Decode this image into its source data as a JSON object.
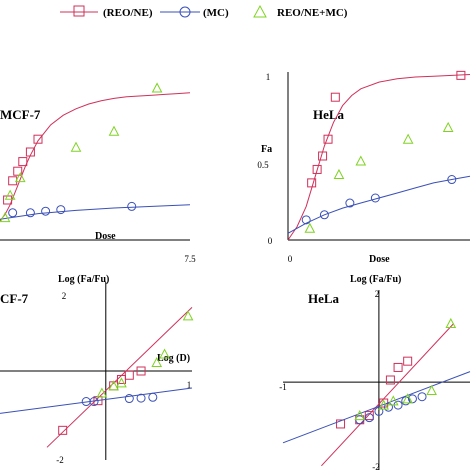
{
  "legend": {
    "items": [
      {
        "label": "(REO/NE)",
        "color": "#d0305a",
        "marker": "square"
      },
      {
        "label": "(MC)",
        "color": "#3a50b8",
        "marker": "circle"
      },
      {
        "label": "REO/NE+MC)",
        "color": "#7ed321",
        "marker": "triangle"
      }
    ]
  },
  "chart_data": [
    {
      "type": "scatter",
      "title": "MCF-7",
      "xlabel": "Dose",
      "ylabel": "",
      "xlim": [
        0,
        7.5
      ],
      "ylim": [
        0,
        1
      ],
      "x_ticks": [
        "7.5"
      ],
      "y_ticks": [],
      "series": [
        {
          "name": "(REO/NE)",
          "x": [
            0.3,
            0.5,
            0.7,
            0.9,
            1.2,
            1.5
          ],
          "y": [
            0.25,
            0.37,
            0.43,
            0.49,
            0.55,
            0.63
          ],
          "curve": {
            "x": [
              0,
              0.2,
              0.4,
              0.6,
              0.8,
              1,
              1.2,
              1.5,
              2,
              2.5,
              3,
              3.5,
              4,
              4.5,
              5,
              5.5,
              6,
              6.5,
              7,
              7.5
            ],
            "y": [
              0.12,
              0.16,
              0.22,
              0.3,
              0.38,
              0.46,
              0.53,
              0.62,
              0.72,
              0.78,
              0.82,
              0.85,
              0.87,
              0.885,
              0.895,
              0.9,
              0.905,
              0.91,
              0.915,
              0.92
            ]
          }
        },
        {
          "name": "(MC)",
          "x": [
            0.5,
            1.2,
            1.8,
            2.4,
            5.2
          ],
          "y": [
            0.17,
            0.17,
            0.18,
            0.19,
            0.21
          ],
          "curve": {
            "x": [
              0,
              1.5,
              3,
              4.5,
              6,
              7.5
            ],
            "y": [
              0.13,
              0.165,
              0.185,
              0.2,
              0.21,
              0.22
            ]
          }
        },
        {
          "name": "REO/NE+MC)",
          "x": [
            0.2,
            0.4,
            0.8,
            3.0,
            4.5,
            6.2
          ],
          "y": [
            0.14,
            0.28,
            0.39,
            0.58,
            0.68,
            0.95
          ]
        }
      ]
    },
    {
      "type": "scatter",
      "title": "HeLa",
      "xlabel": "Dose",
      "ylabel": "Fa",
      "xlim": [
        0,
        10
      ],
      "ylim": [
        0,
        1
      ],
      "x_ticks": [
        "0"
      ],
      "y_ticks": [
        "0",
        "0.5",
        "1"
      ],
      "series": [
        {
          "name": "(REO/NE)",
          "x": [
            1.3,
            1.6,
            1.9,
            2.2,
            2.6,
            9.5
          ],
          "y": [
            0.34,
            0.42,
            0.5,
            0.6,
            0.85,
            0.98
          ],
          "curve": {
            "x": [
              0,
              0.5,
              1,
              1.5,
              2,
              2.5,
              3,
              3.5,
              4,
              5,
              6,
              7,
              8,
              9,
              10
            ],
            "y": [
              0.0,
              0.08,
              0.2,
              0.38,
              0.56,
              0.7,
              0.8,
              0.86,
              0.9,
              0.94,
              0.96,
              0.97,
              0.975,
              0.98,
              0.985
            ]
          }
        },
        {
          "name": "(MC)",
          "x": [
            1.0,
            2.0,
            3.4,
            4.8,
            9.0
          ],
          "y": [
            0.12,
            0.15,
            0.22,
            0.25,
            0.36
          ],
          "curve": {
            "x": [
              0,
              1,
              2,
              3,
              4,
              5,
              6,
              7,
              8,
              9,
              10
            ],
            "y": [
              0.04,
              0.1,
              0.15,
              0.19,
              0.22,
              0.25,
              0.28,
              0.31,
              0.34,
              0.36,
              0.38
            ]
          }
        },
        {
          "name": "REO/NE+MC)",
          "x": [
            1.2,
            2.8,
            4.0,
            6.6,
            8.8
          ],
          "y": [
            0.07,
            0.39,
            0.47,
            0.6,
            0.67
          ]
        }
      ]
    },
    {
      "type": "scatter",
      "title": "CF-7",
      "xlabel": "Log (D)",
      "ylabel": "Log (Fa/Fu)",
      "xlim": [
        -1.35,
        1.1
      ],
      "ylim": [
        -2.1,
        2.1
      ],
      "x_ticks": [
        "1"
      ],
      "y_ticks": [
        "2",
        "-2"
      ],
      "series": [
        {
          "name": "(REO/NE)",
          "x": [
            -0.55,
            -0.1,
            0.1,
            0.2,
            0.3,
            0.45
          ],
          "y": [
            -1.4,
            -0.7,
            -0.35,
            -0.2,
            -0.1,
            0.0
          ],
          "line": {
            "x": [
              -0.75,
              1.1
            ],
            "y": [
              -1.8,
              1.5
            ]
          }
        },
        {
          "name": "(MC)",
          "x": [
            -0.25,
            -0.15,
            0.3,
            0.45,
            0.6
          ],
          "y": [
            -0.72,
            -0.72,
            -0.65,
            -0.64,
            -0.62
          ],
          "line": {
            "x": [
              -1.35,
              1.1
            ],
            "y": [
              -1.0,
              -0.4
            ]
          }
        },
        {
          "name": "REO/NE+MC)",
          "x": [
            -0.05,
            0.1,
            0.2,
            0.65,
            0.75,
            1.05
          ],
          "y": [
            -0.52,
            -0.35,
            -0.28,
            0.2,
            0.4,
            1.3
          ]
        }
      ]
    },
    {
      "type": "scatter",
      "title": "HeLa",
      "xlabel": "",
      "ylabel": "Log (Fa/Fu)",
      "xlim": [
        -1.0,
        0.95
      ],
      "ylim": [
        -2.1,
        2.2
      ],
      "x_ticks": [
        "-1"
      ],
      "y_ticks": [
        "2",
        "-2"
      ],
      "series": [
        {
          "name": "(REO/NE)",
          "x": [
            -0.4,
            -0.2,
            -0.1,
            0.05,
            0.12,
            0.2,
            0.3
          ],
          "y": [
            -1.0,
            -0.9,
            -0.8,
            -0.5,
            0.05,
            0.35,
            0.5
          ],
          "line": {
            "x": [
              -0.6,
              0.78
            ],
            "y": [
              -2.0,
              1.4
            ]
          }
        },
        {
          "name": "(MC)",
          "x": [
            -0.2,
            -0.1,
            0.0,
            0.1,
            0.2,
            0.28,
            0.35,
            0.45
          ],
          "y": [
            -0.9,
            -0.85,
            -0.7,
            -0.6,
            -0.55,
            -0.45,
            -0.4,
            -0.35
          ],
          "line": {
            "x": [
              -1.0,
              0.95
            ],
            "y": [
              -1.45,
              0.25
            ]
          }
        },
        {
          "name": "REO/NE+MC)",
          "x": [
            -0.2,
            0.05,
            0.15,
            0.3,
            0.55,
            0.75
          ],
          "y": [
            -0.8,
            -0.55,
            -0.45,
            -0.4,
            -0.2,
            1.4
          ]
        }
      ]
    }
  ]
}
